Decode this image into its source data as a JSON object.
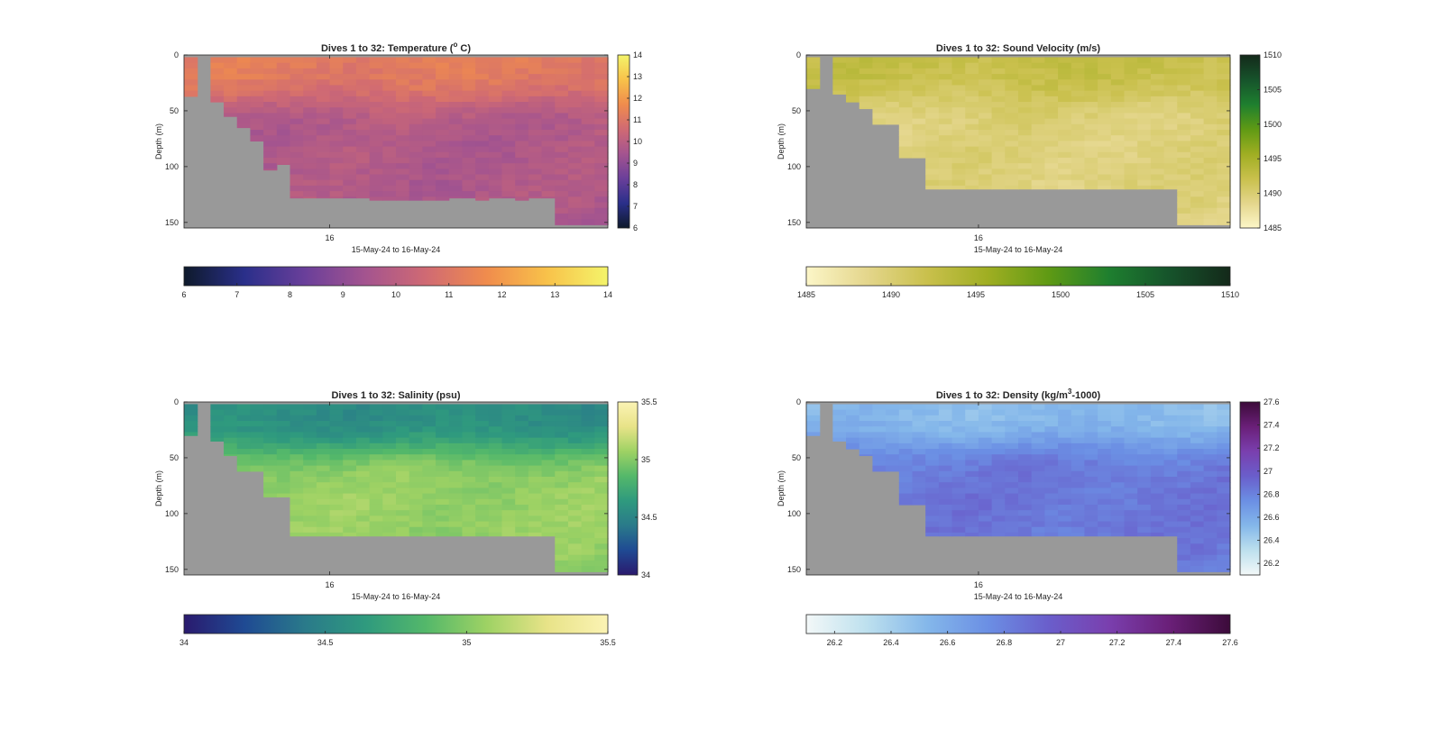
{
  "figure": {
    "background": "#ffffff",
    "no_data_color": "#999999"
  },
  "chart_data": [
    {
      "type": "heatmap",
      "title": "Dives 1 to 32: Temperature (° C)",
      "title_parts": {
        "main": "Dives 1 to 32: Temperature (",
        "sup": "o",
        "tail": " C)"
      },
      "ylabel": "Depth (m)",
      "xlabel": "15-May-24 to 16-May-24",
      "x_tick_labels": [
        "16"
      ],
      "x_ticks": [
        11.5
      ],
      "xlim": [
        0.5,
        32.5
      ],
      "ylim": [
        0,
        155
      ],
      "y_reversed": true,
      "y_ticks": [
        0,
        50,
        100,
        150
      ],
      "clim": [
        6,
        14
      ],
      "colorbar_ticks": [
        6,
        7,
        8,
        9,
        10,
        11,
        12,
        13,
        14
      ],
      "colormap": [
        "#0e1a2b",
        "#2a2f8a",
        "#6a3f9a",
        "#a4548f",
        "#d06a73",
        "#f08c4d",
        "#f8c24a",
        "#f4f46a"
      ],
      "dives": 32,
      "max_depth": [
        37,
        0,
        42,
        55,
        65,
        77,
        103,
        98,
        128,
        128,
        128,
        128,
        128,
        128,
        130,
        130,
        130,
        130,
        130,
        130,
        128,
        128,
        130,
        128,
        128,
        130,
        128,
        128,
        152,
        152,
        152,
        152
      ],
      "surface_value": 11.2,
      "deep_value": 9.7,
      "thermocline_depth": 38
    },
    {
      "type": "heatmap",
      "title": "Dives 1 to 32: Sound Velocity (m/s)",
      "ylabel": "Depth (m)",
      "xlabel": "15-May-24 to 16-May-24",
      "x_tick_labels": [
        "16"
      ],
      "x_ticks": [
        13.5
      ],
      "xlim": [
        0.5,
        32.5
      ],
      "ylim": [
        0,
        155
      ],
      "y_reversed": true,
      "y_ticks": [
        0,
        50,
        100,
        150
      ],
      "clim": [
        1485,
        1510
      ],
      "colorbar_ticks": [
        1485,
        1490,
        1495,
        1500,
        1505,
        1510
      ],
      "colormap": [
        "#fcf6c8",
        "#e4d68c",
        "#c9c04c",
        "#9fae22",
        "#5f9a14",
        "#1e7f2f",
        "#16532b",
        "#14291a"
      ],
      "dives": 32,
      "max_depth": [
        30,
        0,
        35,
        42,
        48,
        62,
        62,
        92,
        92,
        120,
        120,
        120,
        120,
        120,
        120,
        120,
        120,
        120,
        120,
        120,
        120,
        120,
        120,
        120,
        120,
        120,
        120,
        120,
        152,
        152,
        152,
        152
      ],
      "surface_value": 1492.5,
      "deep_value": 1489.5,
      "thermocline_depth": 35
    },
    {
      "type": "heatmap",
      "title": "Dives 1 to 32: Salinity (psu)",
      "ylabel": "Depth (m)",
      "xlabel": "15-May-24 to 16-May-24",
      "x_tick_labels": [
        "16"
      ],
      "x_ticks": [
        11.5
      ],
      "xlim": [
        0.5,
        32.5
      ],
      "ylim": [
        0,
        155
      ],
      "y_reversed": true,
      "y_ticks": [
        0,
        50,
        100,
        150
      ],
      "clim": [
        34,
        35.5
      ],
      "colorbar_ticks": [
        34,
        34.5,
        35,
        35.5
      ],
      "colormap": [
        "#2a1a6e",
        "#1f4a93",
        "#2a7a8a",
        "#2f9a7e",
        "#54b86a",
        "#9ed264",
        "#e8e388",
        "#fbf3b4"
      ],
      "dives": 32,
      "max_depth": [
        30,
        0,
        35,
        48,
        62,
        62,
        85,
        85,
        120,
        120,
        120,
        120,
        120,
        120,
        120,
        120,
        120,
        120,
        120,
        120,
        120,
        120,
        120,
        120,
        120,
        120,
        120,
        120,
        152,
        152,
        152,
        152
      ],
      "surface_value": 34.55,
      "deep_value": 35.05,
      "thermocline_depth": 40
    },
    {
      "type": "heatmap",
      "title": "Dives 1 to 32: Density (kg/m³-1000)",
      "title_parts": {
        "main": "Dives 1 to 32: Density (kg/m",
        "sup": "3",
        "tail": "-1000)"
      },
      "ylabel": "Depth (m)",
      "xlabel": "15-May-24 to 16-May-24",
      "x_tick_labels": [
        "16"
      ],
      "x_ticks": [
        13.5
      ],
      "xlim": [
        0.5,
        32.5
      ],
      "ylim": [
        0,
        155
      ],
      "y_reversed": true,
      "y_ticks": [
        0,
        50,
        100,
        150
      ],
      "clim": [
        26.1,
        27.6
      ],
      "colorbar_ticks": [
        26.2,
        26.4,
        26.6,
        26.8,
        27,
        27.2,
        27.4,
        27.6
      ],
      "colorbar_ticks_vertical": [
        26.2,
        26.4,
        26.6,
        26.8,
        27,
        27.2,
        27.4,
        27.6
      ],
      "colormap": [
        "#f3f8f8",
        "#bde0ee",
        "#84b7ea",
        "#6b8fe4",
        "#6a5ecb",
        "#7a3fae",
        "#6a1f78",
        "#3c0b3a"
      ],
      "dives": 32,
      "max_depth": [
        30,
        0,
        35,
        42,
        48,
        62,
        62,
        92,
        92,
        120,
        120,
        120,
        120,
        120,
        120,
        120,
        120,
        120,
        120,
        120,
        120,
        120,
        120,
        120,
        120,
        120,
        120,
        120,
        152,
        152,
        152,
        152
      ],
      "surface_value": 26.5,
      "deep_value": 26.85,
      "thermocline_depth": 35
    }
  ]
}
